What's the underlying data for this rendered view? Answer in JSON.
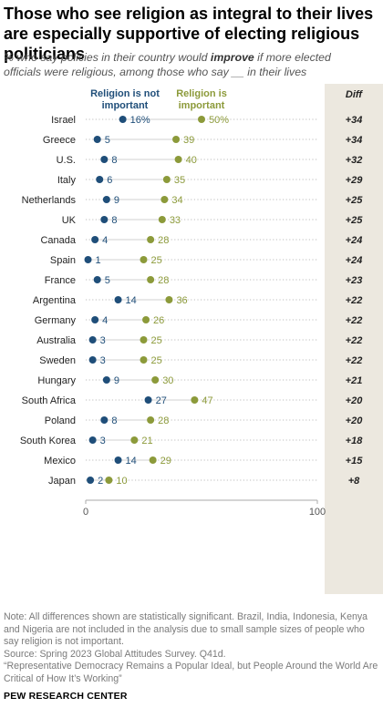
{
  "title": "Those who see religion as integral to their lives are especially supportive of electing religious politicians",
  "subtitle": {
    "before": "% who say policies in their country would ",
    "emphasis": "improve",
    "after": " if more elected officials were religious, among those who say __ in their lives"
  },
  "colors": {
    "not_important": "#1f4e79",
    "important": "#8c9a3a",
    "diff_panel": "#ece8df",
    "label": "#222222"
  },
  "chart_data": {
    "type": "scatter",
    "subtype": "dot-plot",
    "xlim": [
      0,
      100
    ],
    "x_ticks": [
      "0",
      "100"
    ],
    "diff_header": "Diff",
    "categories": [
      "Israel",
      "Greece",
      "U.S.",
      "Italy",
      "Netherlands",
      "UK",
      "Canada",
      "Spain",
      "France",
      "Argentina",
      "Germany",
      "Australia",
      "Sweden",
      "Hungary",
      "South Africa",
      "Poland",
      "South Korea",
      "Mexico",
      "Japan"
    ],
    "series": [
      {
        "name": "Religion is not important",
        "values": [
          16,
          5,
          8,
          6,
          9,
          8,
          4,
          1,
          5,
          14,
          4,
          3,
          3,
          9,
          27,
          8,
          3,
          14,
          2
        ]
      },
      {
        "name": "Religion is important",
        "values": [
          50,
          39,
          40,
          35,
          34,
          33,
          28,
          25,
          28,
          36,
          26,
          25,
          25,
          30,
          47,
          28,
          21,
          29,
          10
        ]
      }
    ],
    "value_labels": {
      "not_important": [
        "16%",
        "5",
        "8",
        "6",
        "9",
        "8",
        "4",
        "1",
        "5",
        "14",
        "4",
        "3",
        "3",
        "9",
        "27",
        "8",
        "3",
        "14",
        "2"
      ],
      "important": [
        "50%",
        "39",
        "40",
        "35",
        "34",
        "33",
        "28",
        "25",
        "28",
        "36",
        "26",
        "25",
        "25",
        "30",
        "47",
        "28",
        "21",
        "29",
        "10"
      ]
    },
    "diff": [
      "+34",
      "+34",
      "+32",
      "+29",
      "+25",
      "+25",
      "+24",
      "+24",
      "+23",
      "+22",
      "+22",
      "+22",
      "+22",
      "+21",
      "+20",
      "+20",
      "+18",
      "+15",
      "+8"
    ],
    "legend": {
      "not_important": [
        "Religion is not",
        "important"
      ],
      "important": [
        "Religion is",
        "important"
      ]
    }
  },
  "notes": [
    "Note: All differences shown are statistically significant. Brazil, India, Indonesia, Kenya and Nigeria are not included in the analysis due to small sample sizes of people who say religion is not important.",
    "Source: Spring 2023 Global Attitudes Survey. Q41d.",
    "“Representative Democracy Remains a Popular Ideal, but People Around the World Are Critical of How It’s Working”"
  ],
  "brand": "PEW RESEARCH CENTER"
}
